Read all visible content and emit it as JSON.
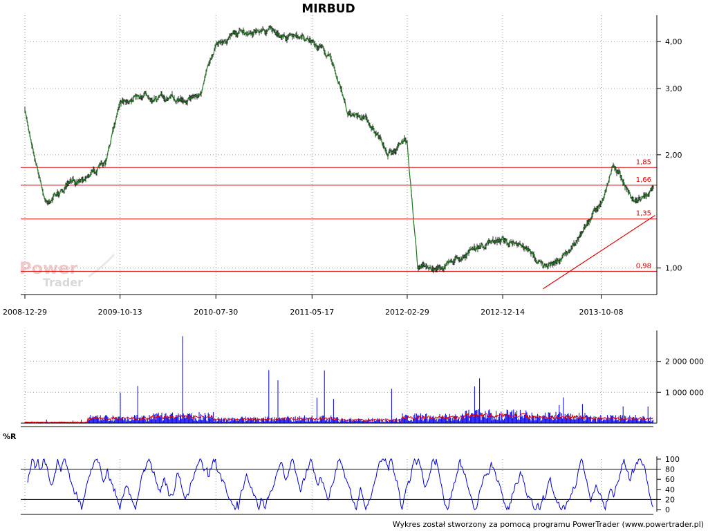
{
  "chart_data": [
    {
      "type": "line",
      "panel": "price",
      "title": "MIRBUD",
      "scale": "log",
      "ylim": [
        0.85,
        4.7
      ],
      "x": [
        "2008-12-29",
        "2009-03-01",
        "2009-06-01",
        "2009-09-01",
        "2009-10-13",
        "2010-01-01",
        "2010-04-01",
        "2010-06-15",
        "2010-07-30",
        "2010-10-01",
        "2011-01-01",
        "2011-03-15",
        "2011-05-17",
        "2011-07-15",
        "2011-09-01",
        "2011-11-01",
        "2012-01-01",
        "2012-02-29",
        "2012-04-01",
        "2012-06-01",
        "2012-09-01",
        "2012-12-14",
        "2013-03-01",
        "2013-05-01",
        "2013-07-01",
        "2013-10-08",
        "2013-11-15",
        "2014-01-15",
        "2014-03-15"
      ],
      "y": [
        2.6,
        1.5,
        1.7,
        1.9,
        2.8,
        2.9,
        2.8,
        2.9,
        4.0,
        4.2,
        4.3,
        4.1,
        4.0,
        3.6,
        2.6,
        2.5,
        2.0,
        2.2,
        1.0,
        1.0,
        1.1,
        1.2,
        1.1,
        1.0,
        1.1,
        1.5,
        1.9,
        1.5,
        1.6
      ],
      "xticks": [
        "2008-12-29",
        "2009-10-13",
        "2010-07-30",
        "2011-05-17",
        "2012-02-29",
        "2012-12-14",
        "2013-10-08"
      ],
      "yticks": [
        "1,00",
        "2,00",
        "3,00",
        "4,00"
      ],
      "yticks_values": [
        1.0,
        2.0,
        3.0,
        4.0
      ],
      "levels": [
        {
          "value": 1.85,
          "label": "1,85"
        },
        {
          "value": 1.66,
          "label": "1,66"
        },
        {
          "value": 1.35,
          "label": "1,35"
        },
        {
          "value": 0.98,
          "label": "0,98"
        }
      ],
      "trendline": {
        "from": {
          "x": "2013-04-15",
          "y": 0.88
        },
        "to": {
          "x": "2014-03-20",
          "y": 1.38
        }
      },
      "grid": true,
      "watermark": [
        "Power",
        "Trader"
      ],
      "colors": {
        "price": "#1a7a1a",
        "levels": "#e00000"
      }
    },
    {
      "type": "bar",
      "panel": "volume",
      "yticks": [
        "1 000 000",
        "2 000 000"
      ],
      "yticks_values": [
        1000000,
        2000000
      ],
      "ylim": [
        0,
        3000000
      ],
      "series": [
        {
          "values": [
            120000,
            2000000,
            3000000,
            1800000,
            2050000,
            1600000,
            1650000,
            1500000,
            1300000,
            800000
          ]
        },
        {
          "values": [
            30000,
            150000,
            200000,
            120000,
            140000,
            100000,
            180000,
            250000,
            200000,
            150000
          ]
        }
      ],
      "colors": {
        "bars": "#0000ee",
        "average": "#e00000"
      }
    },
    {
      "type": "line",
      "panel": "oscillator",
      "label": "%R",
      "ylim": [
        0,
        100
      ],
      "yticks": [
        "0",
        "20",
        "40",
        "60",
        "80",
        "100"
      ],
      "yticks_values": [
        0,
        20,
        40,
        60,
        80,
        100
      ],
      "reference_lines": [
        20,
        80
      ],
      "series": [
        {
          "values": [
            30,
            100,
            10,
            90,
            0,
            100,
            20,
            80,
            5,
            95,
            40,
            100,
            0,
            70,
            10,
            100,
            30,
            90,
            0,
            80
          ]
        }
      ],
      "colors": {
        "line": "#0000cc"
      }
    }
  ],
  "footer": "Wykres został stworzony za pomocą programu PowerTrader (www.powertrader.pl)"
}
